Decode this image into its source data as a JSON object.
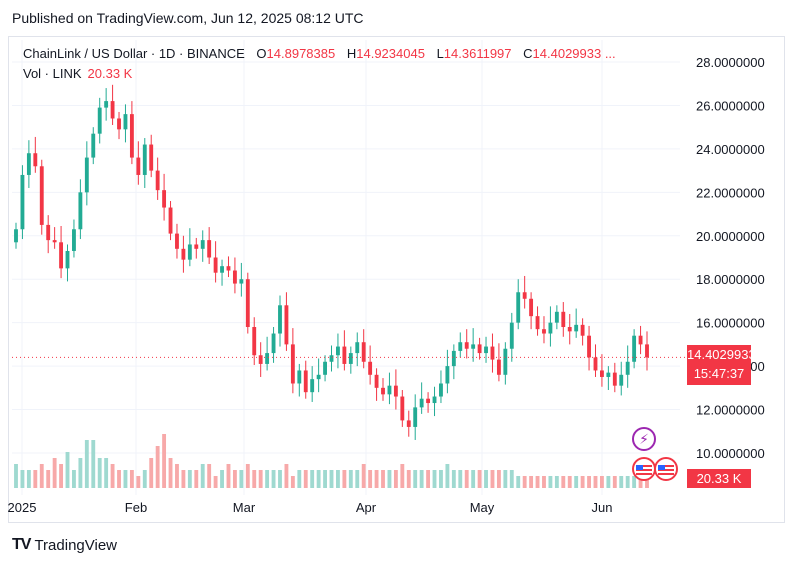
{
  "published": "Published on TradingView.com, Jun 12, 2025 08:12 UTC",
  "legend": {
    "symbol": "ChainLink / US Dollar · 1D · BINANCE",
    "o_label": "O",
    "o_value": "14.8978385",
    "h_label": "H",
    "h_value": "14.9234045",
    "l_label": "L",
    "l_value": "14.3611997",
    "c_label": "C",
    "c_value": "14.4029933 ..."
  },
  "volume_legend": {
    "label": "Vol · LINK",
    "value": "20.33 K"
  },
  "price_tag": {
    "price": "14.4029933",
    "countdown": "15:47:37"
  },
  "volume_tag": "20.33 K",
  "footer_brand": "TradingView",
  "badges": {
    "event_icon": "lightning-bolt-icon",
    "flag_icon": "us-flag-icon"
  },
  "colors": {
    "up": "#22ab94",
    "down": "#f23645",
    "volume_up": "#9fd9d0",
    "volume_down": "#f7a9a9"
  },
  "chart_data": {
    "type": "candlestick",
    "title": "ChainLink / US Dollar · 1D · BINANCE",
    "y_axis_labels": [
      "28.0000000",
      "26.0000000",
      "24.0000000",
      "22.0000000",
      "20.0000000",
      "18.0000000",
      "16.0000000",
      "14.0000000",
      "12.0000000",
      "10.0000000"
    ],
    "y_ticks": [
      28,
      26,
      24,
      22,
      20,
      18,
      16,
      14,
      12,
      10
    ],
    "ylim": [
      9.2,
      29.5
    ],
    "x_labels": [
      "2025",
      "Feb",
      "Mar",
      "Apr",
      "May",
      "Jun"
    ],
    "last_price": 14.4029933,
    "close": [
      20.3,
      22.8,
      23.8,
      23.2,
      20.5,
      19.8,
      19.7,
      18.5,
      19.3,
      20.3,
      22.0,
      23.6,
      24.7,
      25.9,
      26.2,
      25.4,
      24.9,
      25.6,
      23.6,
      22.8,
      24.2,
      23.0,
      22.1,
      21.3,
      20.1,
      19.4,
      18.9,
      19.6,
      19.4,
      19.8,
      19.0,
      18.3,
      18.6,
      18.4,
      17.8,
      18.0,
      15.8,
      14.5,
      14.1,
      14.6,
      15.5,
      16.8,
      15.0,
      13.2,
      13.8,
      12.8,
      13.4,
      13.6,
      14.2,
      14.5,
      14.9,
      14.1,
      14.6,
      15.1,
      14.2,
      13.6,
      13.0,
      12.7,
      13.1,
      12.6,
      11.5,
      11.2,
      12.1,
      12.5,
      12.3,
      12.6,
      13.2,
      14.0,
      14.7,
      15.1,
      14.8,
      15.0,
      14.6,
      14.9,
      14.3,
      13.6,
      14.8,
      16.0,
      17.4,
      17.1,
      16.3,
      15.7,
      15.5,
      16.0,
      16.5,
      15.8,
      15.6,
      15.9,
      15.4,
      14.4,
      13.8,
      13.5,
      13.7,
      13.1,
      13.6,
      14.2,
      15.4,
      15.0,
      14.4
    ],
    "volume_relative": [
      0.4,
      0.3,
      0.3,
      0.3,
      0.4,
      0.3,
      0.5,
      0.4,
      0.6,
      0.3,
      0.5,
      0.8,
      0.8,
      0.5,
      0.5,
      0.4,
      0.3,
      0.3,
      0.3,
      0.2,
      0.3,
      0.5,
      0.7,
      0.9,
      0.5,
      0.4,
      0.3,
      0.3,
      0.3,
      0.4,
      0.4,
      0.2,
      0.3,
      0.4,
      0.3,
      0.3,
      0.4,
      0.3,
      0.3,
      0.3,
      0.3,
      0.3,
      0.4,
      0.2,
      0.3,
      0.3,
      0.3,
      0.3,
      0.3,
      0.3,
      0.3,
      0.3,
      0.3,
      0.3,
      0.4,
      0.3,
      0.3,
      0.3,
      0.3,
      0.3,
      0.4,
      0.3,
      0.3,
      0.3,
      0.3,
      0.3,
      0.3,
      0.4,
      0.3,
      0.3,
      0.3,
      0.3,
      0.3,
      0.3,
      0.3,
      0.3,
      0.3,
      0.3,
      0.2,
      0.2,
      0.2,
      0.2,
      0.2,
      0.2,
      0.2,
      0.2,
      0.2,
      0.2,
      0.2,
      0.2,
      0.2,
      0.2,
      0.2,
      0.2,
      0.2,
      0.2,
      0.2,
      0.2,
      0.2
    ]
  }
}
